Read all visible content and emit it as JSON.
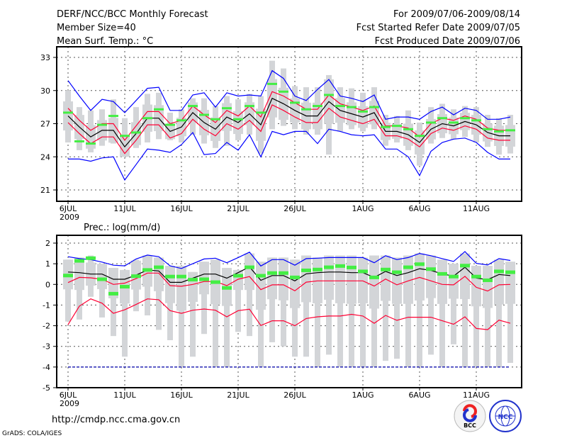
{
  "header": {
    "title": "DERF/NCC/BCC Monthly Forecast",
    "member_size": "Member Size=40",
    "variable": "Mean Surf. Temp.: °C",
    "period": "For 2009/07/06-2009/08/14",
    "fcst_started": "Fcst Started Refer Date 2009/07/05",
    "fcst_produced": "Fcst Produced Date 2009/07/06"
  },
  "footer": {
    "url": "http://cmdp.ncc.cma.gov.cn",
    "credit": "GrADS: COLA/IGES",
    "logo_bcc": "BCC",
    "logo_ncc": "NCC"
  },
  "colors": {
    "max_min": "#0000ff",
    "spread": "#ff0033",
    "mean": "#000000",
    "obs": "#44ee44",
    "box": "#d3d5d8"
  },
  "chart_data": [
    {
      "type": "line",
      "title": "Mean Surf. Temp.: °C",
      "ylim": [
        20,
        34
      ],
      "yticks": [
        33,
        30,
        27,
        24,
        21
      ],
      "xtick_labels": [
        "6JUL",
        "11JUL",
        "16JUL",
        "21JUL",
        "26JUL",
        "1AUG",
        "6AUG",
        "11AUG"
      ],
      "xtick_days": [
        0,
        5,
        10,
        15,
        20,
        26,
        31,
        36
      ],
      "year_label": "2009",
      "days": 40,
      "grid": true,
      "series": [
        {
          "name": "max",
          "color": "#0000ff",
          "values": [
            30.9,
            29.5,
            28.2,
            29.2,
            29.0,
            28.0,
            29.1,
            30.2,
            30.3,
            28.2,
            28.2,
            29.6,
            29.8,
            28.5,
            29.8,
            29.5,
            29.6,
            29.5,
            31.8,
            31.1,
            29.5,
            29.1,
            30.1,
            31.0,
            29.5,
            29.3,
            29.0,
            29.6,
            27.4,
            27.6,
            27.6,
            27.4,
            28.1,
            28.5,
            27.8,
            28.4,
            28.2,
            27.4,
            27.4,
            27.6
          ]
        },
        {
          "name": "mean_plus_sd",
          "color": "#ff0033",
          "values": [
            28.4,
            27.3,
            26.4,
            27.0,
            27.0,
            25.5,
            26.8,
            28.1,
            28.1,
            27.0,
            27.3,
            28.6,
            27.8,
            27.1,
            28.2,
            27.7,
            28.6,
            27.6,
            29.9,
            29.5,
            28.9,
            28.3,
            28.3,
            29.6,
            28.8,
            28.5,
            28.2,
            28.6,
            26.8,
            26.8,
            26.6,
            25.8,
            27.0,
            27.5,
            27.3,
            27.7,
            27.4,
            26.6,
            26.4,
            26.4
          ]
        },
        {
          "name": "mean",
          "color": "#000000",
          "values": [
            27.7,
            26.7,
            25.8,
            26.4,
            26.4,
            24.9,
            26.1,
            27.5,
            27.5,
            26.3,
            26.7,
            28.0,
            27.1,
            26.5,
            27.6,
            27.1,
            27.9,
            26.9,
            29.3,
            28.8,
            28.2,
            27.7,
            27.7,
            29.0,
            28.2,
            27.9,
            27.6,
            28.0,
            26.3,
            26.3,
            26.0,
            25.3,
            26.5,
            27.0,
            26.8,
            27.2,
            26.9,
            26.2,
            25.9,
            25.9
          ]
        },
        {
          "name": "mean_minus_sd",
          "color": "#ff0033",
          "values": [
            27.1,
            26.1,
            25.2,
            25.8,
            25.8,
            24.3,
            25.5,
            26.9,
            26.9,
            25.7,
            26.1,
            27.4,
            26.5,
            25.9,
            27.0,
            26.5,
            27.3,
            26.3,
            28.7,
            28.2,
            27.6,
            27.1,
            27.1,
            28.4,
            27.6,
            27.3,
            27.0,
            27.4,
            25.9,
            25.9,
            25.6,
            24.9,
            26.1,
            26.6,
            26.4,
            26.8,
            26.5,
            25.7,
            25.5,
            25.5
          ]
        },
        {
          "name": "min",
          "color": "#0000ff",
          "values": [
            23.8,
            23.8,
            23.6,
            23.9,
            24.0,
            21.9,
            23.3,
            24.7,
            24.6,
            24.4,
            25.1,
            26.2,
            24.2,
            24.3,
            25.3,
            24.6,
            26.0,
            24.0,
            26.3,
            26.0,
            26.3,
            26.3,
            25.2,
            26.5,
            26.3,
            26.0,
            25.9,
            26.0,
            24.7,
            24.7,
            24.0,
            22.3,
            24.5,
            25.3,
            25.6,
            25.7,
            25.3,
            24.4,
            23.8,
            23.8
          ]
        }
      ],
      "markers": {
        "name": "obs",
        "values": [
          28.0,
          25.4,
          25.2,
          26.9,
          27.7,
          25.9,
          26.2,
          27.5,
          28.3,
          26.9,
          27.3,
          28.6,
          27.8,
          27.4,
          28.4,
          27.4,
          28.6,
          28.0,
          30.6,
          29.9,
          28.9,
          28.3,
          28.6,
          29.6,
          28.6,
          28.5,
          28.1,
          28.5,
          26.7,
          26.8,
          26.5,
          25.9,
          27.1,
          27.5,
          27.1,
          27.5,
          27.3,
          26.5,
          26.3,
          26.4
        ]
      },
      "boxes": {
        "low": [
          25.3,
          24.6,
          24.4,
          25.0,
          25.2,
          24.0,
          24.8,
          25.3,
          25.6,
          25.5,
          25.3,
          26.0,
          25.2,
          24.8,
          25.0,
          25.5,
          26.0,
          24.3,
          26.5,
          26.8,
          26.5,
          26.0,
          26.0,
          24.2,
          26.3,
          26.5,
          26.3,
          26.5,
          25.0,
          25.3,
          24.6,
          23.2,
          25.2,
          25.7,
          25.6,
          25.8,
          25.3,
          24.9,
          24.2,
          24.3
        ],
        "high": [
          30.0,
          28.5,
          28.2,
          28.3,
          29.2,
          27.5,
          28.5,
          29.7,
          29.8,
          28.0,
          28.3,
          29.3,
          29.3,
          28.6,
          29.5,
          29.2,
          29.7,
          29.5,
          32.7,
          32.0,
          30.4,
          30.3,
          30.3,
          31.4,
          30.3,
          30.2,
          29.8,
          30.3,
          27.8,
          27.7,
          28.2,
          27.1,
          28.5,
          28.8,
          28.3,
          28.6,
          28.5,
          27.8,
          27.5,
          27.8
        ]
      }
    },
    {
      "type": "line",
      "title": "Prec.: log(mm/d)",
      "ylim": [
        -5,
        2.3
      ],
      "yticks": [
        2,
        1,
        0,
        -1,
        -2,
        -3,
        -4,
        -5
      ],
      "xtick_labels": [
        "6JUL",
        "11JUL",
        "16JUL",
        "21JUL",
        "26JUL",
        "1AUG",
        "6AUG",
        "11AUG"
      ],
      "xtick_days": [
        0,
        5,
        10,
        15,
        20,
        26,
        31,
        36
      ],
      "year_label": "2009",
      "days": 40,
      "grid": true,
      "series": [
        {
          "name": "max",
          "color": "#0000ff",
          "values": [
            1.34,
            1.25,
            1.2,
            1.08,
            0.93,
            0.9,
            1.23,
            1.42,
            1.34,
            0.9,
            0.77,
            1.0,
            1.23,
            1.27,
            1.05,
            1.3,
            1.56,
            0.89,
            1.2,
            1.2,
            0.93,
            1.25,
            1.27,
            1.3,
            1.3,
            1.3,
            1.3,
            1.05,
            1.39,
            1.2,
            1.3,
            1.5,
            1.39,
            1.25,
            1.11,
            1.59,
            1.02,
            0.94,
            1.25,
            1.16
          ]
        },
        {
          "name": "mean",
          "color": "#000000",
          "values": [
            0.6,
            0.57,
            0.5,
            0.5,
            0.25,
            0.25,
            0.45,
            0.7,
            0.65,
            0.1,
            0.1,
            0.3,
            0.5,
            0.5,
            0.3,
            0.57,
            0.85,
            0.2,
            0.43,
            0.43,
            0.17,
            0.51,
            0.57,
            0.6,
            0.6,
            0.57,
            0.57,
            0.34,
            0.63,
            0.43,
            0.57,
            0.76,
            0.68,
            0.51,
            0.4,
            0.83,
            0.31,
            0.23,
            0.48,
            0.43
          ]
        },
        {
          "name": "mean_plus_sd",
          "color": "#ff0033",
          "values": [
            0.09,
            0.34,
            0.32,
            0.25,
            0.0,
            0.06,
            0.28,
            0.55,
            0.55,
            -0.06,
            -0.09,
            0.0,
            0.14,
            0.14,
            -0.06,
            0.25,
            0.38,
            -0.25,
            -0.02,
            -0.02,
            -0.31,
            0.11,
            0.17,
            0.17,
            0.17,
            0.17,
            0.17,
            -0.08,
            0.26,
            -0.02,
            0.17,
            0.34,
            0.17,
            0.0,
            -0.02,
            0.39,
            -0.14,
            -0.32,
            -0.02,
            0.0
          ]
        },
        {
          "name": "mean_minus_sd",
          "color": "#ff0033",
          "values": [
            -1.95,
            -1.05,
            -0.7,
            -0.91,
            -1.4,
            -1.23,
            -0.97,
            -0.7,
            -0.74,
            -1.27,
            -1.4,
            -1.25,
            -1.19,
            -1.25,
            -1.57,
            -1.27,
            -1.2,
            -1.99,
            -1.76,
            -1.76,
            -2.0,
            -1.65,
            -1.57,
            -1.53,
            -1.53,
            -1.45,
            -1.53,
            -1.88,
            -1.5,
            -1.74,
            -1.59,
            -1.59,
            -1.59,
            -1.76,
            -1.93,
            -1.57,
            -2.13,
            -2.19,
            -1.73,
            -1.88
          ]
        },
        {
          "name": "min",
          "color": "#0000aa",
          "values": [
            -4,
            -4,
            -4,
            -4,
            -4,
            -4,
            -4,
            -4,
            -4,
            -4,
            -4,
            -4,
            -4,
            -4,
            -4,
            -4,
            -4,
            -4,
            -4,
            -4,
            -4,
            -4,
            -4,
            -4,
            -4,
            -4,
            -4,
            -4,
            -4,
            -4,
            -4,
            -4,
            -4,
            -4,
            -4,
            -4,
            -4,
            -4,
            -4,
            -4
          ]
        }
      ],
      "markers": {
        "name": "obs",
        "values": [
          0.43,
          1.14,
          1.27,
          0.25,
          -0.45,
          -0.11,
          0.4,
          0.7,
          0.83,
          0.38,
          0.38,
          0.23,
          0.25,
          0.11,
          -0.17,
          0.42,
          0.83,
          0.42,
          0.55,
          0.55,
          0.34,
          0.68,
          0.72,
          0.83,
          0.89,
          0.82,
          0.63,
          0.34,
          0.72,
          0.59,
          0.83,
          0.98,
          0.74,
          0.51,
          0.38,
          0.91,
          0.38,
          0.2,
          0.63,
          0.59
        ]
      },
      "boxes": {
        "low": [
          -1.8,
          -1.7,
          -0.6,
          -1.6,
          -2.5,
          -3.5,
          -1.3,
          -1.5,
          -2.2,
          -2.7,
          -4.0,
          -3.5,
          -2.4,
          -4.0,
          -4.0,
          -2.3,
          -2.5,
          -4.0,
          -2.8,
          -3.0,
          -3.5,
          -3.5,
          -4.0,
          -3.4,
          -4.0,
          -4.0,
          -4.0,
          -4.0,
          -3.7,
          -3.6,
          -4.0,
          -4.0,
          -3.4,
          -4.0,
          -2.9,
          -4.0,
          -4.0,
          -4.0,
          -4.0,
          -3.8
        ],
        "high": [
          1.2,
          1.3,
          1.4,
          1.0,
          0.8,
          0.7,
          1.2,
          1.4,
          1.3,
          0.9,
          0.9,
          0.6,
          1.1,
          1.2,
          0.8,
          0.7,
          1.5,
          1.1,
          1.3,
          1.3,
          1.2,
          1.4,
          1.3,
          1.4,
          1.4,
          1.4,
          1.3,
          1.4,
          1.4,
          1.3,
          1.4,
          1.5,
          1.4,
          1.2,
          1.0,
          1.5,
          0.9,
          0.9,
          1.2,
          1.1
        ]
      }
    }
  ]
}
